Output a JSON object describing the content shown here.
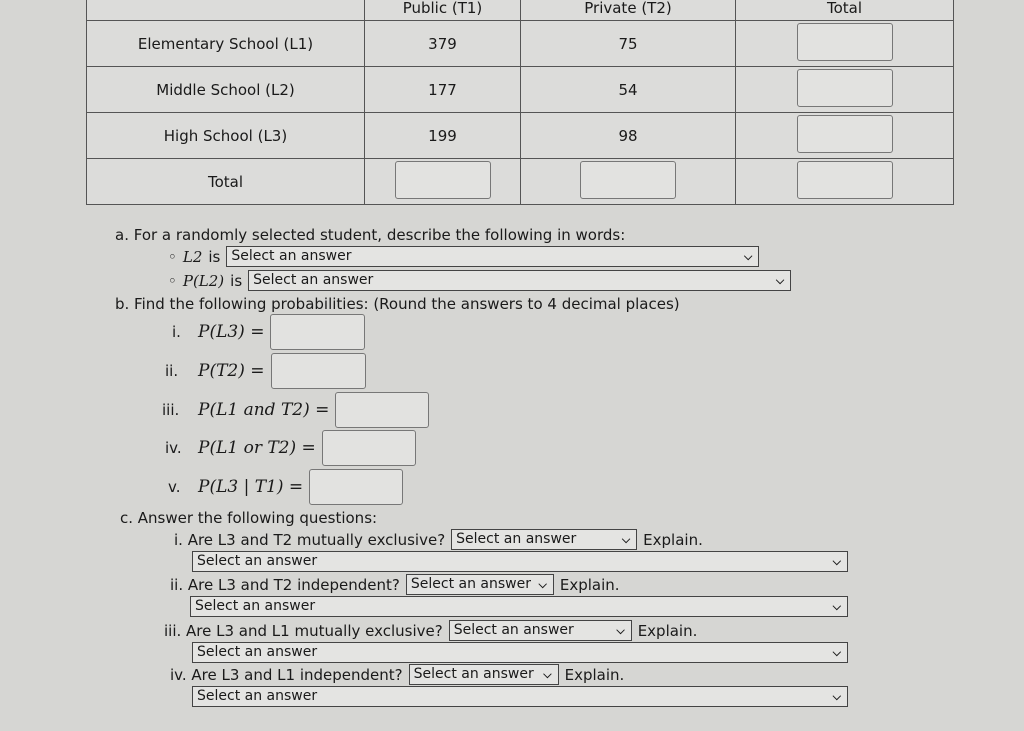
{
  "table": {
    "headers": [
      "",
      "Public (T1)",
      "Private (T2)",
      "Total"
    ],
    "rows": [
      {
        "label": "Elementary School (L1)",
        "public": "379",
        "private": "75"
      },
      {
        "label": "Middle School (L2)",
        "public": "177",
        "private": "54"
      },
      {
        "label": "High School (L3)",
        "public": "199",
        "private": "98"
      }
    ],
    "total_label": "Total"
  },
  "part_a": {
    "prompt": "a. For a randomly selected student, describe the following in words:",
    "items": [
      {
        "expr": "L2",
        "is": "is",
        "select": "Select an answer"
      },
      {
        "expr": "P(L2)",
        "is": "is",
        "select": "Select an answer"
      }
    ]
  },
  "part_b": {
    "prompt": "b. Find the following probabilities: (Round the answers to 4 decimal places)",
    "items": [
      {
        "num": "i.",
        "expr": "P(L3) ="
      },
      {
        "num": "ii.",
        "expr": "P(T2) ="
      },
      {
        "num": "iii.",
        "expr": "P(L1 and T2) ="
      },
      {
        "num": "iv.",
        "expr": "P(L1 or T2) ="
      },
      {
        "num": "v.",
        "expr": "P(L3 | T1) ="
      }
    ]
  },
  "part_c": {
    "prompt": "c. Answer the following questions:",
    "items": [
      {
        "q": "i. Are L3 and T2 mutually exclusive?",
        "select": "Select an answer",
        "explain": "Explain.",
        "explain_select": "Select an answer"
      },
      {
        "q": "ii. Are L3 and T2 independent?",
        "select": "Select an answer",
        "explain": "Explain.",
        "explain_select": "Select an answer"
      },
      {
        "q": "iii. Are L3 and L1 mutually exclusive?",
        "select": "Select an answer",
        "explain": "Explain.",
        "explain_select": "Select an answer"
      },
      {
        "q": "iv. Are L3 and L1 independent?",
        "select": "Select an answer",
        "explain": "Explain.",
        "explain_select": "Select an answer"
      }
    ]
  },
  "icons": {
    "dropdown": "chevron-down-icon"
  }
}
